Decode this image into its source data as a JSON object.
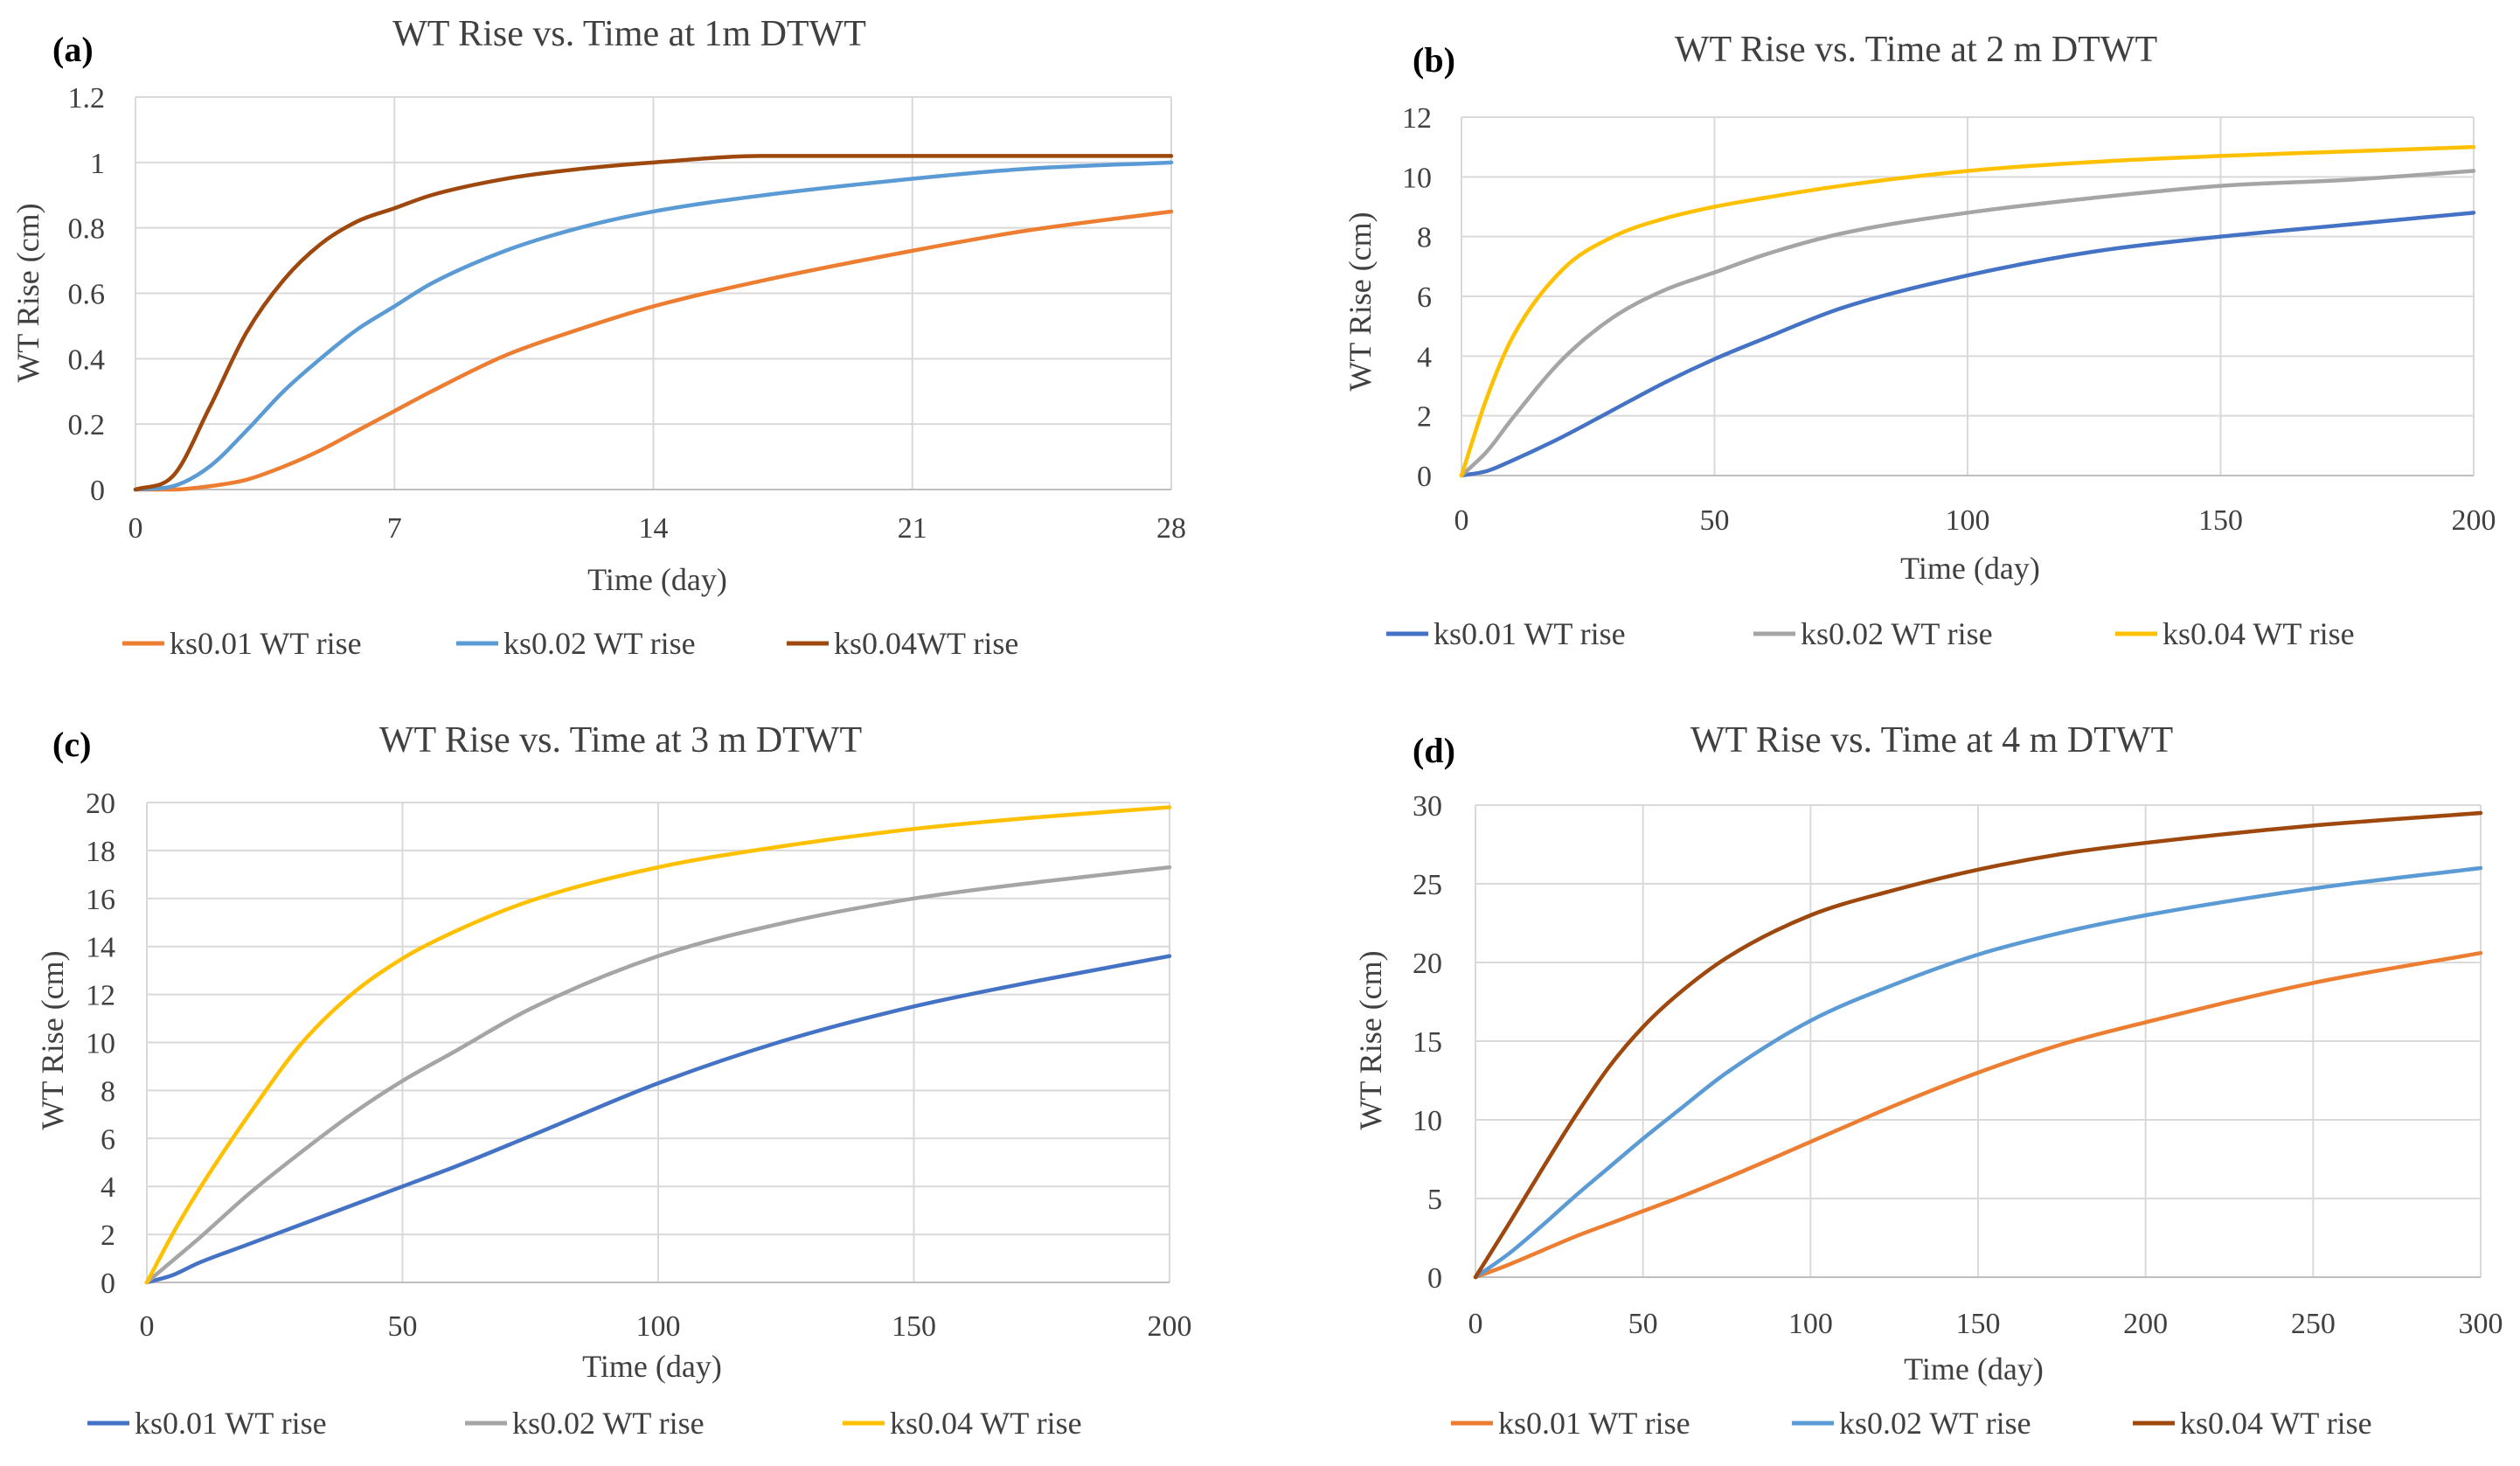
{
  "chart_data": [
    {
      "type": "line",
      "tag": "(a)",
      "title": "WT Rise vs. Time at 1m DTWT",
      "xlabel": "Time (day)",
      "ylabel": "WT Rise (cm)",
      "xlim": [
        0,
        28
      ],
      "ylim": [
        0,
        1.2
      ],
      "xticks": [
        "0",
        "7",
        "14",
        "21",
        "28"
      ],
      "yticks": [
        "0",
        "0.2",
        "0.4",
        "0.6",
        "0.8",
        "1",
        "1.2"
      ],
      "grid": true,
      "legend_position": "bottom",
      "x": [
        0,
        1,
        2,
        3,
        4,
        5,
        6,
        7,
        8,
        10,
        12,
        14,
        17,
        21,
        24,
        28
      ],
      "series": [
        {
          "name": "ks0.01 WT rise",
          "color": "#ed7d31",
          "values": [
            0,
            0,
            0.01,
            0.03,
            0.07,
            0.12,
            0.18,
            0.24,
            0.3,
            0.41,
            0.49,
            0.56,
            0.64,
            0.73,
            0.79,
            0.85
          ]
        },
        {
          "name": "ks0.02 WT rise",
          "color": "#5b9bd5",
          "values": [
            0,
            0.01,
            0.07,
            0.18,
            0.3,
            0.4,
            0.49,
            0.56,
            0.63,
            0.73,
            0.8,
            0.85,
            0.9,
            0.95,
            0.98,
            1.0
          ]
        },
        {
          "name": "ks0.04WT rise",
          "color": "#9e480e",
          "values": [
            0,
            0.04,
            0.25,
            0.48,
            0.64,
            0.75,
            0.82,
            0.86,
            0.9,
            0.95,
            0.98,
            1.0,
            1.02,
            1.02,
            1.02,
            1.02
          ]
        }
      ]
    },
    {
      "type": "line",
      "tag": "(b)",
      "title": "WT Rise vs. Time at 2 m DTWT",
      "xlabel": "Time (day)",
      "ylabel": "WT Rise (cm)",
      "xlim": [
        0,
        200
      ],
      "ylim": [
        0,
        12
      ],
      "xticks": [
        "0",
        "50",
        "100",
        "150",
        "200"
      ],
      "yticks": [
        "0",
        "2",
        "4",
        "6",
        "8",
        "10",
        "12"
      ],
      "grid": true,
      "legend_position": "bottom",
      "x": [
        0,
        5,
        10,
        20,
        30,
        40,
        50,
        60,
        75,
        100,
        125,
        150,
        175,
        200
      ],
      "series": [
        {
          "name": "ks0.01 WT rise",
          "color": "#4472c4",
          "values": [
            0,
            0.15,
            0.5,
            1.3,
            2.2,
            3.1,
            3.9,
            4.6,
            5.6,
            6.7,
            7.5,
            8.0,
            8.4,
            8.8
          ]
        },
        {
          "name": "ks0.02 WT rise",
          "color": "#a5a5a5",
          "values": [
            0,
            0.8,
            1.9,
            3.9,
            5.3,
            6.2,
            6.8,
            7.4,
            8.1,
            8.8,
            9.3,
            9.7,
            9.9,
            10.2
          ]
        },
        {
          "name": "ks0.04 WT rise",
          "color": "#ffc000",
          "values": [
            0,
            2.6,
            4.6,
            6.9,
            8.0,
            8.6,
            9.0,
            9.3,
            9.7,
            10.2,
            10.5,
            10.7,
            10.85,
            11.0
          ]
        }
      ]
    },
    {
      "type": "line",
      "tag": "(c)",
      "title": "WT Rise vs. Time at 3 m DTWT",
      "xlabel": "Time (day)",
      "ylabel": "WT Rise (cm)",
      "xlim": [
        0,
        200
      ],
      "ylim": [
        0,
        20
      ],
      "xticks": [
        "0",
        "50",
        "100",
        "150",
        "200"
      ],
      "yticks": [
        "0",
        "2",
        "4",
        "6",
        "8",
        "10",
        "12",
        "14",
        "16",
        "18",
        "20"
      ],
      "grid": true,
      "legend_position": "bottom",
      "x": [
        0,
        5,
        10,
        20,
        30,
        40,
        50,
        60,
        75,
        100,
        125,
        150,
        175,
        200
      ],
      "series": [
        {
          "name": "ks0.01 WT rise",
          "color": "#4472c4",
          "values": [
            0,
            0.3,
            0.8,
            1.6,
            2.4,
            3.2,
            4.0,
            4.8,
            6.1,
            8.3,
            10.1,
            11.5,
            12.6,
            13.6
          ]
        },
        {
          "name": "ks0.02 WT rise",
          "color": "#a5a5a5",
          "values": [
            0,
            0.9,
            1.8,
            3.7,
            5.4,
            7.0,
            8.4,
            9.6,
            11.4,
            13.6,
            15.0,
            16.0,
            16.7,
            17.3
          ]
        },
        {
          "name": "ks0.04 WT rise",
          "color": "#ffc000",
          "values": [
            0,
            2.0,
            3.8,
            7.0,
            9.9,
            12.0,
            13.5,
            14.6,
            15.9,
            17.3,
            18.2,
            18.9,
            19.4,
            19.8
          ]
        }
      ]
    },
    {
      "type": "line",
      "tag": "(d)",
      "title": "WT Rise vs. Time at 4 m DTWT",
      "xlabel": "Time (day)",
      "ylabel": "WT Rise (cm)",
      "xlim": [
        0,
        300
      ],
      "ylim": [
        0,
        30
      ],
      "xticks": [
        "0",
        "50",
        "100",
        "150",
        "200",
        "250",
        "300"
      ],
      "yticks": [
        "0",
        "5",
        "10",
        "15",
        "20",
        "25",
        "30"
      ],
      "grid": true,
      "legend_position": "bottom",
      "x": [
        0,
        10,
        20,
        30,
        40,
        50,
        60,
        75,
        100,
        125,
        150,
        175,
        200,
        250,
        300
      ],
      "series": [
        {
          "name": "ks0.01 WT rise",
          "color": "#ed7d31",
          "values": [
            0,
            0.8,
            1.7,
            2.6,
            3.4,
            4.2,
            5.0,
            6.3,
            8.6,
            10.9,
            13.0,
            14.8,
            16.2,
            18.7,
            20.6
          ]
        },
        {
          "name": "ks0.02 WT rise",
          "color": "#5b9bd5",
          "values": [
            0,
            1.5,
            3.3,
            5.2,
            7.0,
            8.8,
            10.5,
            13.0,
            16.3,
            18.6,
            20.5,
            21.9,
            23.0,
            24.7,
            26.0
          ]
        },
        {
          "name": "ks0.04 WT rise",
          "color": "#9e480e",
          "values": [
            0,
            3.4,
            6.9,
            10.3,
            13.4,
            15.9,
            17.9,
            20.3,
            23.0,
            24.6,
            25.9,
            26.9,
            27.6,
            28.7,
            29.5
          ]
        }
      ]
    }
  ]
}
